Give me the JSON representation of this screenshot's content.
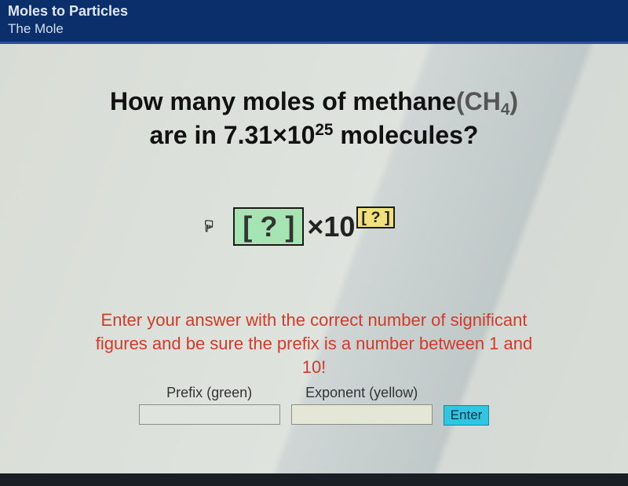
{
  "header": {
    "title": "Moles to Particles",
    "subtitle": "The Mole"
  },
  "question": {
    "line1_pre": "How many moles of methane",
    "formula_open": "(",
    "formula_base": "CH",
    "formula_sub": "4",
    "formula_close": ")",
    "line2_pre": "are in ",
    "coef": "7.31",
    "times": "×10",
    "exp": "25",
    "line2_post": " molecules?"
  },
  "answer_template": {
    "lbracket": "[",
    "q": "?",
    "rbracket": "]",
    "times10": "×10",
    "exp_lbracket": "[",
    "exp_q": "?",
    "exp_rbracket": "]"
  },
  "hint": "Enter your answer with the correct number of significant figures and be sure the prefix is a number between 1 and 10!",
  "fields": {
    "prefix_label": "Prefix (green)",
    "prefix_value": "",
    "exponent_label": "Exponent (yellow)",
    "exponent_value": ""
  },
  "enter_label": "Enter",
  "colors": {
    "header_bg": "#0a2f6b",
    "hint_text": "#d23a2a",
    "green_box": "#a7e4b3",
    "yellow_box": "#f2e07a",
    "enter_bg": "#2fc7e0"
  }
}
